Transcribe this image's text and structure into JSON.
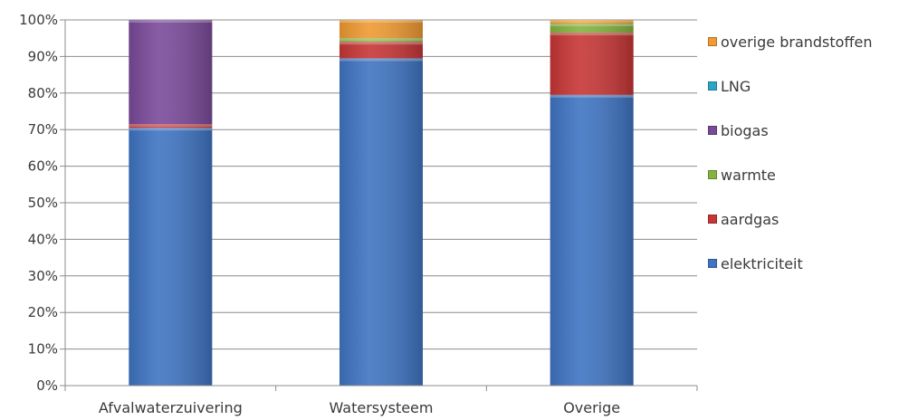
{
  "chart_data": {
    "type": "bar",
    "stacked": true,
    "percent": true,
    "categories": [
      "Afvalwaterzuivering",
      "Watersysteem",
      "Overige"
    ],
    "series": [
      {
        "name": "elektriciteit",
        "color": "#3f74c2",
        "values": [
          70.5,
          89.5,
          79.5
        ]
      },
      {
        "name": "aardgas",
        "color": "#c73636",
        "values": [
          1.0,
          4.5,
          17.0
        ]
      },
      {
        "name": "warmte",
        "color": "#86b33f",
        "values": [
          0,
          1.0,
          2.5
        ]
      },
      {
        "name": "biogas",
        "color": "#7a4a9a",
        "values": [
          28.5,
          0,
          0
        ]
      },
      {
        "name": "LNG",
        "color": "#2aa6c4",
        "values": [
          0,
          0,
          0
        ]
      },
      {
        "name": "overige brandstoffen",
        "color": "#ef9a32",
        "values": [
          0,
          5.0,
          1.0
        ]
      }
    ],
    "y_ticks": [
      "0%",
      "10%",
      "20%",
      "30%",
      "40%",
      "50%",
      "60%",
      "70%",
      "80%",
      "90%",
      "100%"
    ],
    "ylim": [
      0,
      100
    ],
    "grid": true,
    "legend_position": "right",
    "legend_order": [
      "overige brandstoffen",
      "LNG",
      "biogas",
      "warmte",
      "aardgas",
      "elektriciteit"
    ]
  }
}
